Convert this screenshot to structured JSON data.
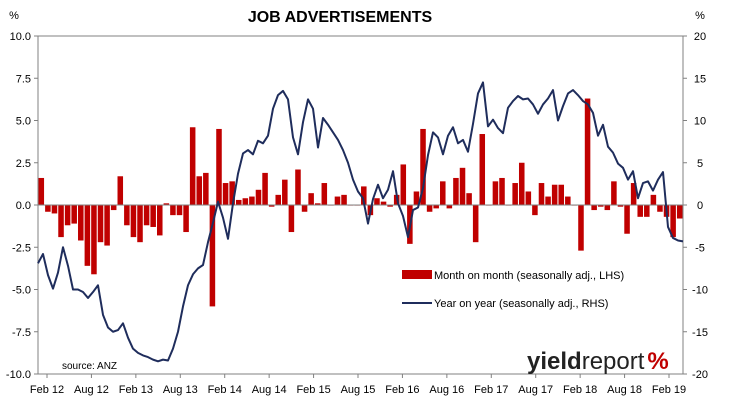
{
  "chart_data": {
    "type": "bar+line",
    "title": "JOB ADVERTISEMENTS",
    "left_unit": "%",
    "right_unit": "%",
    "x_tick_labels": [
      "Feb 12",
      "Aug 12",
      "Feb 13",
      "Aug 13",
      "Feb 14",
      "Aug 14",
      "Feb 15",
      "Aug 15",
      "Feb 16",
      "Aug 16",
      "Feb 17",
      "Aug 17",
      "Feb 18",
      "Aug 18",
      "Feb 19"
    ],
    "y_left": {
      "min": -10,
      "max": 10,
      "ticks": [
        "10.0",
        "7.5",
        "5.0",
        "2.5",
        "0.0",
        "-2.5",
        "-5.0",
        "-7.5",
        "-10.0"
      ]
    },
    "y_right": {
      "min": -20,
      "max": 20,
      "ticks": [
        "20",
        "15",
        "10",
        "5",
        "0",
        "-5",
        "-10",
        "-15",
        "-20"
      ]
    },
    "grid": false,
    "series": [
      {
        "name": "Month on month (seasonally adj., LHS)",
        "type": "bar",
        "axis": "left",
        "color": "#c00000",
        "values": [
          1.6,
          -0.4,
          -0.5,
          -1.9,
          -1.2,
          -1.1,
          -2.1,
          -3.6,
          -4.1,
          -2.2,
          -2.4,
          -0.3,
          1.7,
          -1.2,
          -1.9,
          -2.2,
          -1.2,
          -1.3,
          -1.8,
          0.1,
          -0.6,
          -0.6,
          -1.6,
          4.6,
          1.7,
          1.9,
          -6.0,
          4.5,
          1.3,
          1.4,
          0.3,
          0.4,
          0.5,
          0.9,
          1.9,
          -0.1,
          0.6,
          1.5,
          -1.6,
          2.1,
          -0.4,
          0.7,
          0.1,
          1.3,
          0.0,
          0.5,
          0.6,
          0.0,
          0.0,
          1.1,
          -0.6,
          0.4,
          0.2,
          -0.1,
          0.6,
          2.4,
          -2.3,
          0.8,
          4.5,
          -0.4,
          -0.2,
          1.4,
          -0.2,
          1.6,
          2.2,
          0.7,
          -2.2,
          4.2,
          0.0,
          1.4,
          1.6,
          0.0,
          1.3,
          2.5,
          0.8,
          -0.6,
          1.3,
          0.5,
          1.2,
          1.2,
          0.5,
          0.0,
          -2.7,
          6.3,
          -0.3,
          -0.1,
          -0.3,
          1.4,
          -0.1,
          -1.7,
          1.3,
          -0.7,
          -0.7,
          0.6,
          -0.4,
          -0.7,
          -1.9,
          -0.8
        ]
      },
      {
        "name": "Year on year (seasonally adj., RHS)",
        "type": "line",
        "axis": "right",
        "color": "#1f2d5c",
        "values": [
          -6.9,
          -5.8,
          -8.3,
          -9.9,
          -8.0,
          -5.0,
          -7.2,
          -10.0,
          -10.0,
          -10.3,
          -11.0,
          -10.3,
          -9.5,
          -13.0,
          -14.5,
          -15.0,
          -14.8,
          -14.0,
          -15.7,
          -17.0,
          -17.5,
          -17.8,
          -18.0,
          -18.3,
          -18.5,
          -18.3,
          -18.4,
          -17.0,
          -15.0,
          -12.0,
          -9.5,
          -8.2,
          -7.5,
          -7.1,
          -4.4,
          -2.1,
          0.4,
          -1.5,
          -4.0,
          0.2,
          3.7,
          6.1,
          6.5,
          6.0,
          7.6,
          7.3,
          8.2,
          11.4,
          13.0,
          13.5,
          12.5,
          8.0,
          6.0,
          9.8,
          12.5,
          11.4,
          6.8,
          10.3,
          9.5,
          8.6,
          7.7,
          6.5,
          5.0,
          3.0,
          1.6,
          0.8,
          -2.2,
          0.7,
          2.4,
          0.8,
          1.8,
          4.0,
          0.2,
          -1.3,
          -3.8,
          -0.6,
          -0.3,
          2.0,
          5.9,
          8.6,
          8.0,
          6.0,
          8.2,
          9.2,
          7.3,
          7.7,
          6.3,
          9.6,
          13.2,
          14.5,
          9.3,
          10.1,
          9.1,
          8.5,
          11.5,
          12.3,
          12.9,
          12.5,
          12.6,
          11.9,
          10.8,
          11.9,
          12.6,
          13.6,
          10.0,
          11.7,
          13.2,
          13.6,
          13.0,
          12.3,
          11.9,
          10.9,
          8.2,
          9.5,
          6.9,
          6.2,
          4.9,
          4.4,
          3.0,
          4.0,
          0.8,
          2.6,
          2.8,
          1.7,
          3.0,
          3.9,
          -2.6,
          -3.9,
          -4.2,
          -4.3
        ]
      }
    ]
  },
  "source": "source: ANZ",
  "brand": {
    "part1": "yield",
    "part2": "report",
    "part3": "%"
  }
}
